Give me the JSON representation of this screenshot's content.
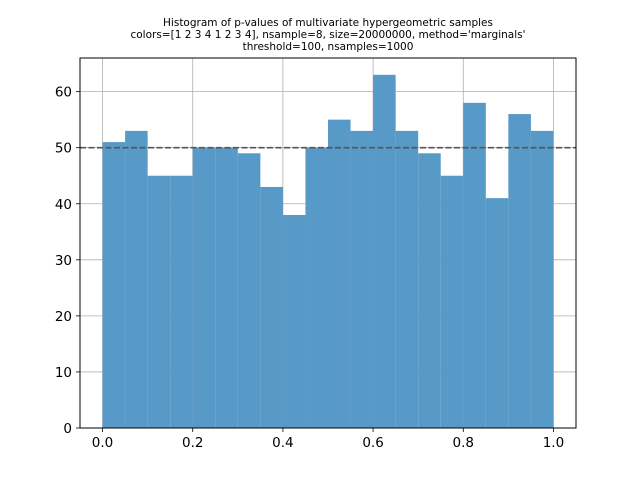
{
  "chart_data": {
    "type": "bar",
    "title_lines": [
      "Histogram of p-values of multivariate hypergeometric samples",
      "colors=[1 2 3 4 1 2 3 4], nsample=8, size=20000000, method='marginals'",
      "threshold=100, nsamples=1000"
    ],
    "xlabel": "",
    "ylabel": "",
    "bin_edges": [
      0.0,
      0.05,
      0.1,
      0.15,
      0.2,
      0.25,
      0.3,
      0.35,
      0.4,
      0.45,
      0.5,
      0.55,
      0.6,
      0.65,
      0.7,
      0.75,
      0.8,
      0.85,
      0.9,
      0.95,
      1.0
    ],
    "counts": [
      51,
      53,
      45,
      45,
      50,
      50,
      49,
      43,
      38,
      50,
      55,
      53,
      63,
      53,
      49,
      45,
      58,
      41,
      56,
      53
    ],
    "xlim": [
      -0.05,
      1.05
    ],
    "ylim": [
      0,
      66
    ],
    "xticks": [
      0.0,
      0.2,
      0.4,
      0.6,
      0.8,
      1.0
    ],
    "xtick_labels": [
      "0.0",
      "0.2",
      "0.4",
      "0.6",
      "0.8",
      "1.0"
    ],
    "yticks": [
      0,
      10,
      20,
      30,
      40,
      50,
      60
    ],
    "ytick_labels": [
      "0",
      "10",
      "20",
      "30",
      "40",
      "50",
      "60"
    ],
    "expected_line": 50,
    "grid": true,
    "bar_color": "#5799c7",
    "expected_line_color": "#555555",
    "grid_color": "#b0b0b0"
  }
}
